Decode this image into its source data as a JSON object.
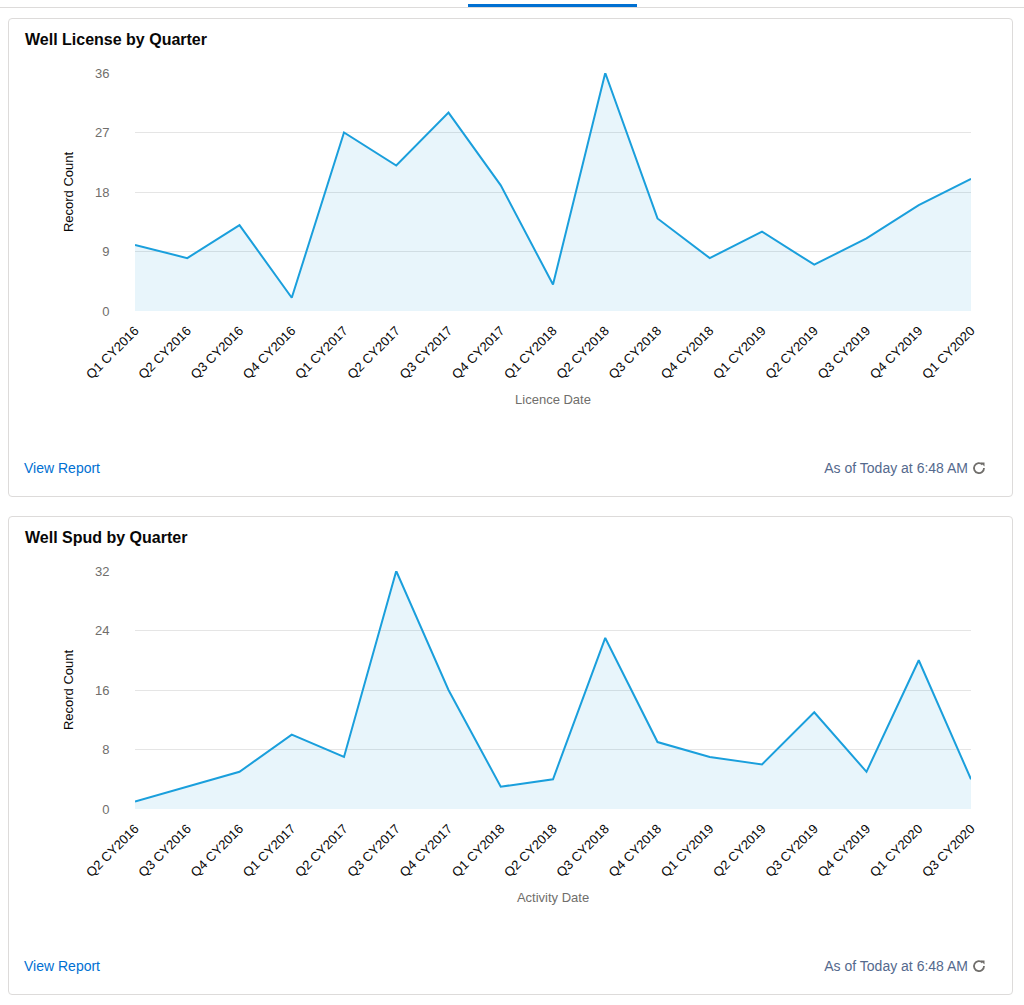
{
  "chart_data": [
    {
      "type": "area",
      "title": "Well License by Quarter",
      "x_label": "Licence Date",
      "y_label": "Record Count",
      "categories": [
        "Q1 CY2016",
        "Q2 CY2016",
        "Q3 CY2016",
        "Q4 CY2016",
        "Q1 CY2017",
        "Q2 CY2017",
        "Q3 CY2017",
        "Q4 CY2017",
        "Q1 CY2018",
        "Q2 CY2018",
        "Q3 CY2018",
        "Q4 CY2018",
        "Q1 CY2019",
        "Q2 CY2019",
        "Q3 CY2019",
        "Q4 CY2019",
        "Q1 CY2020"
      ],
      "values": [
        10,
        8,
        13,
        2,
        27,
        22,
        30,
        19,
        4,
        36,
        14,
        8,
        12,
        7,
        11,
        16,
        20
      ],
      "color": "#1a9fdc",
      "ylim": [
        0,
        36
      ],
      "yticks": [
        0,
        9,
        18,
        27,
        36
      ],
      "grid": true,
      "annotations": [
        "View Report",
        "As of Today at 6:48 AM"
      ]
    },
    {
      "type": "area",
      "title": "Well Spud by Quarter",
      "x_label": "Activity Date",
      "y_label": "Record Count",
      "categories": [
        "Q2 CY2016",
        "Q3 CY2016",
        "Q4 CY2016",
        "Q1 CY2017",
        "Q2 CY2017",
        "Q3 CY2017",
        "Q4 CY2017",
        "Q1 CY2018",
        "Q2 CY2018",
        "Q3 CY2018",
        "Q4 CY2018",
        "Q1 CY2019",
        "Q2 CY2019",
        "Q3 CY2019",
        "Q4 CY2019",
        "Q1 CY2020",
        "Q3 CY2020"
      ],
      "values": [
        1,
        3,
        5,
        10,
        7,
        32,
        16,
        3,
        4,
        23,
        9,
        7,
        6,
        13,
        5,
        20,
        4
      ],
      "color": "#1a9fdc",
      "ylim": [
        0,
        32
      ],
      "yticks": [
        0,
        8,
        16,
        24,
        32
      ],
      "grid": true,
      "annotations": [
        "View Report",
        "As of Today at 6:48 AM"
      ]
    }
  ]
}
